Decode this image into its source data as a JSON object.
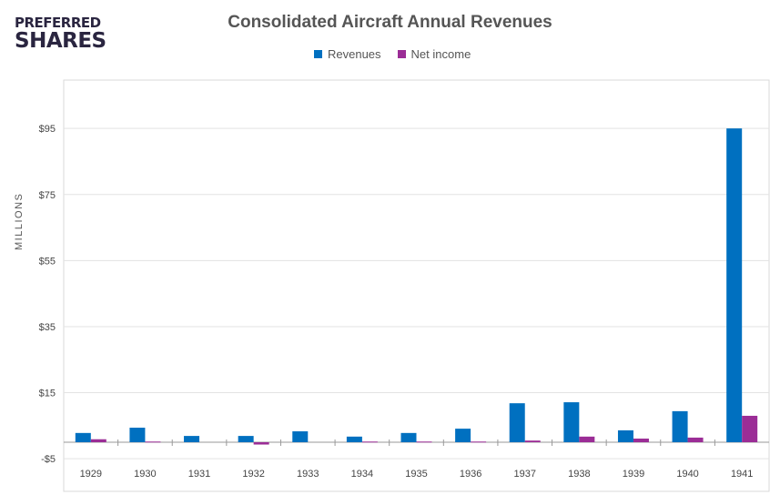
{
  "logo": {
    "line1": "PREFERRED",
    "line2": "SHARES"
  },
  "chart_data": {
    "type": "bar",
    "title": "Consolidated Aircraft Annual Revenues",
    "xlabel": "",
    "ylabel": "MILLIONS",
    "categories": [
      "1929",
      "1930",
      "1931",
      "1932",
      "1933",
      "1934",
      "1935",
      "1936",
      "1937",
      "1938",
      "1939",
      "1940",
      "1941"
    ],
    "series": [
      {
        "name": "Revenues",
        "color": "#0070C0",
        "values": [
          2.8,
          4.4,
          1.9,
          1.9,
          3.3,
          1.7,
          2.8,
          4.1,
          11.8,
          12.1,
          3.6,
          9.4,
          95
        ]
      },
      {
        "name": "Net income",
        "color": "#9B2D96",
        "values": [
          0.9,
          0.2,
          0,
          -0.7,
          0,
          0.2,
          0.2,
          0.2,
          0.5,
          1.7,
          1.1,
          1.4,
          8.0
        ]
      }
    ],
    "ylim": [
      -5,
      110
    ],
    "yticks": [
      -5,
      15,
      35,
      55,
      75,
      95
    ],
    "ytick_labels": [
      "-$5",
      "$15",
      "$35",
      "$55",
      "$75",
      "$95"
    ],
    "grid": true,
    "legend": "top-center"
  }
}
